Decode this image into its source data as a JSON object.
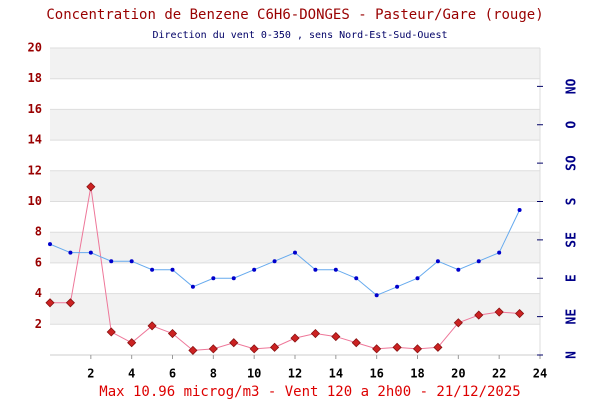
{
  "chart_data": {
    "type": "line",
    "title": "Concentration de Benzene C6H6-DONGES - Pasteur/Gare (rouge)",
    "subtitle": "Direction du vent 0-350 , sens Nord-Est-Sud-Ouest",
    "annotation": "Max 10.96 microg/m3 - Vent 120  a 2h00 - 21/12/2025",
    "x": [
      0,
      1,
      2,
      3,
      4,
      5,
      6,
      7,
      8,
      9,
      10,
      11,
      12,
      13,
      14,
      15,
      16,
      17,
      18,
      19,
      20,
      21,
      22,
      23
    ],
    "xlim": [
      0,
      24
    ],
    "xticks": [
      2,
      4,
      6,
      8,
      10,
      12,
      14,
      16,
      18,
      20,
      22,
      24
    ],
    "ylim": [
      0,
      20
    ],
    "yticks": [
      2,
      4,
      6,
      8,
      10,
      12,
      14,
      16,
      18,
      20
    ],
    "y2lim": [
      0,
      360
    ],
    "y2ticks": [
      {
        "value": 0,
        "label": "N"
      },
      {
        "value": 45,
        "label": "NE"
      },
      {
        "value": 90,
        "label": "E"
      },
      {
        "value": 135,
        "label": "SE"
      },
      {
        "value": 180,
        "label": "S"
      },
      {
        "value": 225,
        "label": "SO"
      },
      {
        "value": 270,
        "label": "O"
      },
      {
        "value": 315,
        "label": "NO"
      }
    ],
    "grid": "bands",
    "series": [
      {
        "color": "#cc2222",
        "line_color": "#ee7799",
        "marker": "diamond",
        "values": [
          3.4,
          3.4,
          10.96,
          1.5,
          0.8,
          1.9,
          1.4,
          0.3,
          0.4,
          0.8,
          0.4,
          0.5,
          1.1,
          1.4,
          1.2,
          0.8,
          0.4,
          0.5,
          0.4,
          0.5,
          2.1,
          2.6,
          2.8,
          2.7
        ]
      },
      {
        "color": "#0000cc",
        "line_color": "#66aaee",
        "marker": "dot",
        "axis": "y2",
        "values": [
          130,
          120,
          120,
          110,
          110,
          100,
          100,
          80,
          90,
          90,
          100,
          110,
          120,
          100,
          100,
          90,
          70,
          80,
          90,
          110,
          100,
          110,
          120,
          170
        ]
      }
    ]
  }
}
